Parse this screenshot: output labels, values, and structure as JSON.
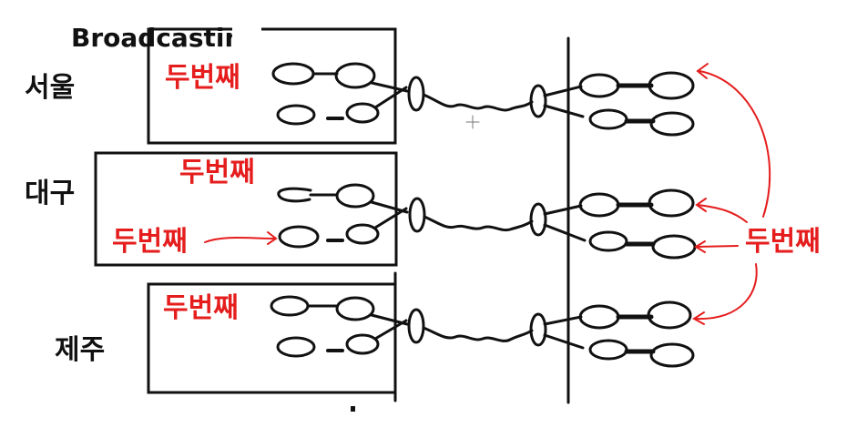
{
  "title": "Broadcastin",
  "cities": [
    "서울",
    "대구",
    "제주"
  ],
  "annotation": "두번째",
  "colors": {
    "ink": "#111111",
    "annotation": "#e51d1d"
  }
}
